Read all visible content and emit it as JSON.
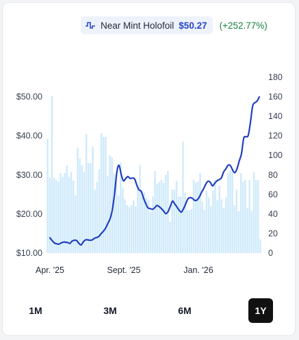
{
  "legend": {
    "name": "Near Mint Holofoil",
    "price": "$50.27",
    "change": "(+252.77%)",
    "icon": "line-chart-icon",
    "price_color": "#2546c6",
    "change_color": "#15803d"
  },
  "ranges": {
    "options": [
      "1M",
      "3M",
      "6M",
      "1Y"
    ],
    "selected": "1Y"
  },
  "chart_data": {
    "type": "line",
    "colors": {
      "line": "#1f3fbf",
      "bars": "#cfeafb"
    },
    "y_left": {
      "ticks": [
        "$10.00",
        "$20.00",
        "$30.00",
        "$40.00",
        "$50.00"
      ],
      "range": [
        10,
        55
      ]
    },
    "y_right": {
      "ticks": [
        "0",
        "20",
        "40",
        "60",
        "80",
        "100",
        "120",
        "140",
        "160",
        "180"
      ],
      "range": [
        0,
        180
      ]
    },
    "x_ticks": [
      "Apr. '25",
      "Sept. '25",
      "Jan. '26"
    ],
    "series": [
      {
        "kind": "line",
        "axis": "left",
        "values": [
          13.9,
          13.2,
          12.6,
          12.4,
          12.3,
          12.6,
          12.8,
          12.8,
          12.7,
          12.5,
          13.1,
          13.3,
          13.2,
          12.5,
          12.1,
          12.9,
          13.4,
          13.4,
          13.3,
          13.4,
          13.8,
          14.0,
          14.3,
          15.0,
          15.6,
          16.4,
          17.6,
          18.8,
          21.0,
          25.2,
          30.6,
          32.5,
          30.1,
          28.5,
          29.1,
          29.6,
          29.1,
          29.2,
          29.0,
          27.4,
          26.2,
          25.8,
          24.1,
          22.7,
          21.6,
          21.4,
          21.2,
          21.6,
          22.2,
          21.9,
          21.4,
          20.8,
          20.1,
          20.6,
          21.9,
          23.3,
          22.6,
          21.8,
          21.0,
          20.5,
          21.4,
          22.7,
          23.9,
          24.2,
          24.0,
          23.5,
          23.6,
          24.3,
          25.5,
          26.5,
          27.7,
          28.4,
          28.1,
          27.2,
          27.9,
          28.5,
          28.8,
          29.3,
          30.8,
          31.6,
          32.5,
          32.4,
          31.3,
          30.6,
          31.6,
          33.6,
          35.5,
          39.4,
          39.8,
          40.1,
          43.4,
          47.6,
          48.5,
          48.9,
          50.0
        ]
      },
      {
        "kind": "bar",
        "axis": "right",
        "values": [
          117,
          77,
          161,
          77,
          75,
          73,
          82,
          78,
          82,
          90,
          78,
          83,
          74,
          59,
          108,
          97,
          90,
          83,
          122,
          92,
          92,
          109,
          65,
          73,
          86,
          123,
          119,
          119,
          79,
          100,
          98,
          81,
          75,
          59,
          93,
          67,
          55,
          49,
          47,
          49,
          54,
          48,
          67,
          90,
          57,
          62,
          57,
          54,
          42,
          58,
          84,
          71,
          73,
          75,
          72,
          80,
          84,
          32,
          65,
          65,
          74,
          58,
          58,
          114,
          62,
          44,
          44,
          45,
          75,
          72,
          73,
          82,
          53,
          44,
          64,
          57,
          48,
          64,
          75,
          54,
          69,
          55,
          46,
          57,
          82,
          85,
          84,
          49,
          65,
          43,
          82,
          73,
          75,
          46,
          75,
          43,
          83,
          75,
          75,
          14
        ]
      }
    ]
  }
}
